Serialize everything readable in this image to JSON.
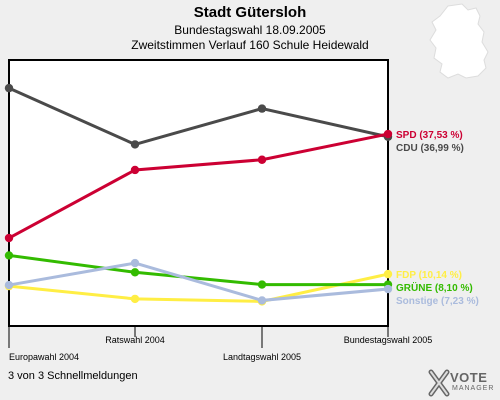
{
  "header": {
    "title": "Stadt Gütersloh",
    "subtitle": "Bundestagswahl 18.09.2005",
    "subtitle2": "Zweitstimmen Verlauf 160 Schule Heidewald"
  },
  "footer": {
    "text": "3 von 3 Schnellmeldungen"
  },
  "logo": {
    "vote": "VOTE",
    "manager": "MANAGER"
  },
  "chart_data": {
    "type": "line",
    "title": "Stadt Gütersloh",
    "categories": [
      "Europawahl 2004",
      "Ratswahl 2004",
      "Landtagswahl 2005",
      "Bundestagswahl 2005"
    ],
    "grid": false,
    "legend": "right, end of lines",
    "series": [
      {
        "name": "CDU",
        "label": "CDU (36,99 %)",
        "color": "#4a4a4a",
        "values": [
          46.5,
          35.5,
          42.5,
          36.99
        ]
      },
      {
        "name": "SPD",
        "label": "SPD (37,53 %)",
        "color": "#cc0033",
        "values": [
          17.2,
          30.5,
          32.5,
          37.53
        ]
      },
      {
        "name": "FDP",
        "label": "FDP (10,14 %)",
        "color": "#ffee44",
        "values": [
          7.8,
          5.3,
          4.8,
          10.14
        ]
      },
      {
        "name": "GRÜNE",
        "label": "GRÜNE (8,10 %)",
        "color": "#33bb00",
        "values": [
          13.8,
          10.5,
          8.1,
          8.1
        ]
      },
      {
        "name": "Sonstige",
        "label": "Sonstige (7,23 %)",
        "color": "#aabbdd",
        "values": [
          8.0,
          12.3,
          5.0,
          7.23
        ]
      }
    ]
  }
}
